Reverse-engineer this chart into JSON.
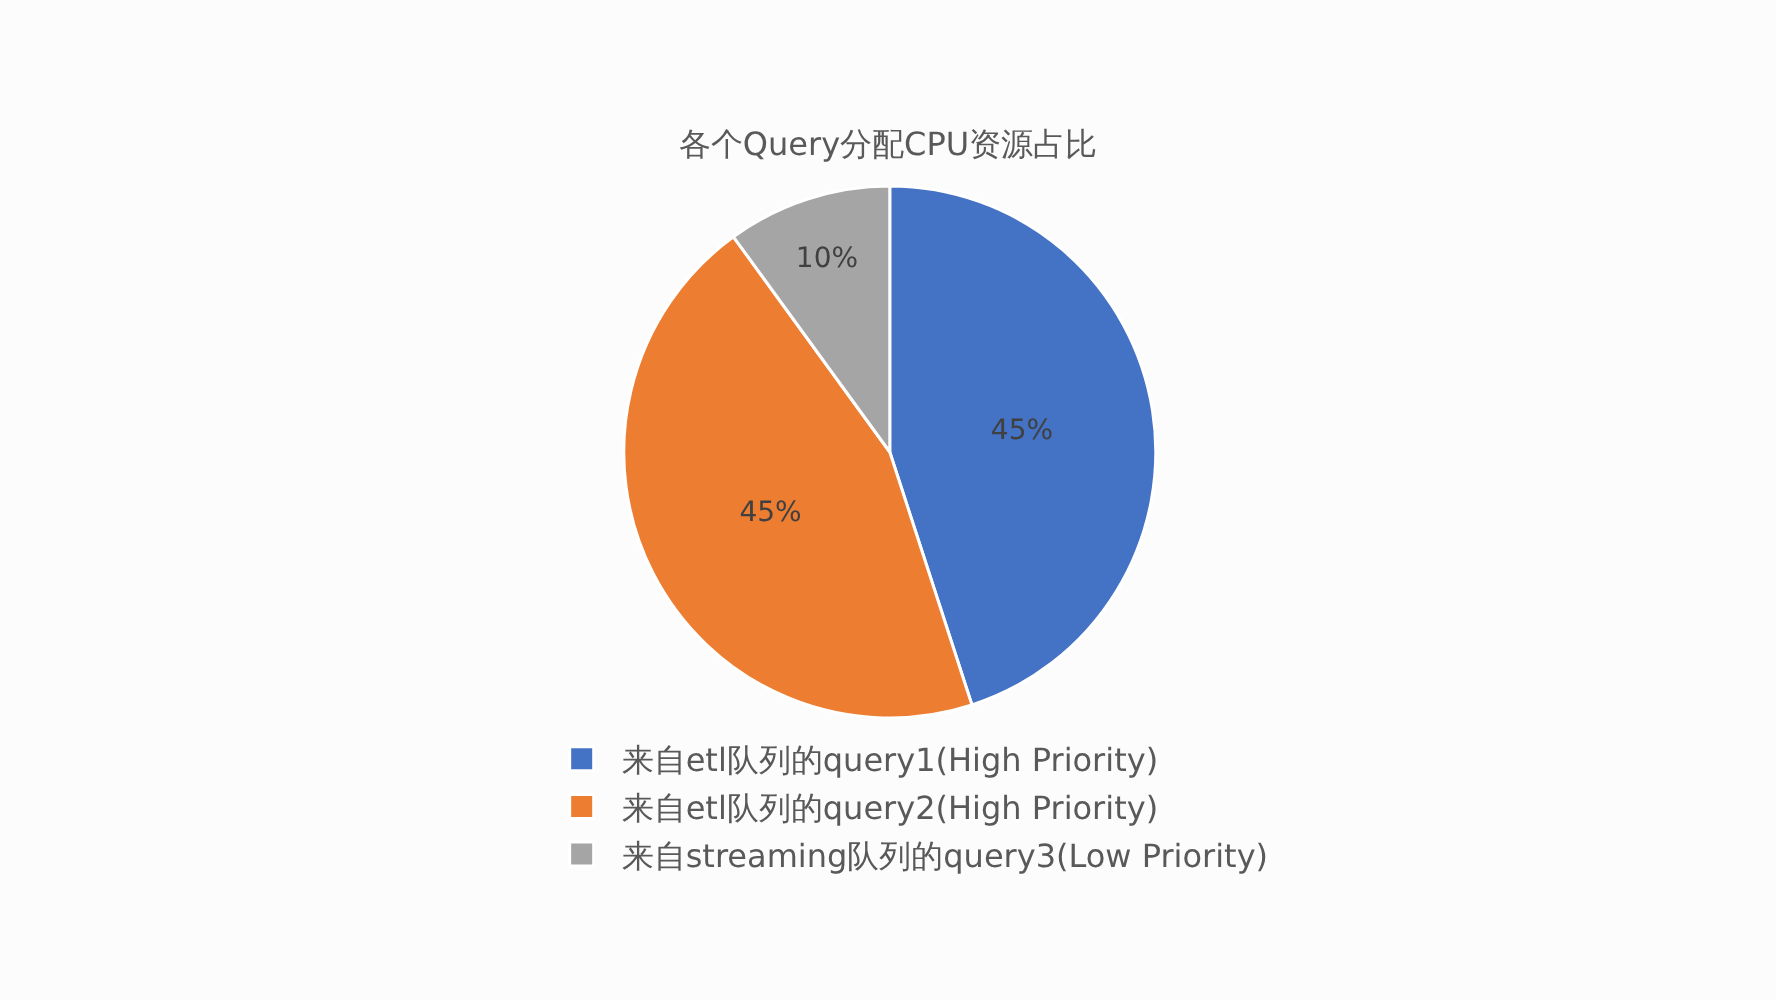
{
  "chart_data": {
    "type": "pie",
    "title": "各个Query分配CPU资源占比",
    "categories": [
      "来自etl队列的query1(High Priority)",
      "来自etl队列的query2(High Priority)",
      "来自streaming队列的query3(Low Priority)"
    ],
    "values": [
      45,
      45,
      10
    ],
    "value_labels": [
      "45%",
      "45%",
      "10%"
    ],
    "colors": [
      "#4472c4",
      "#ed7d31",
      "#a5a5a5"
    ],
    "legend": "bottom"
  }
}
